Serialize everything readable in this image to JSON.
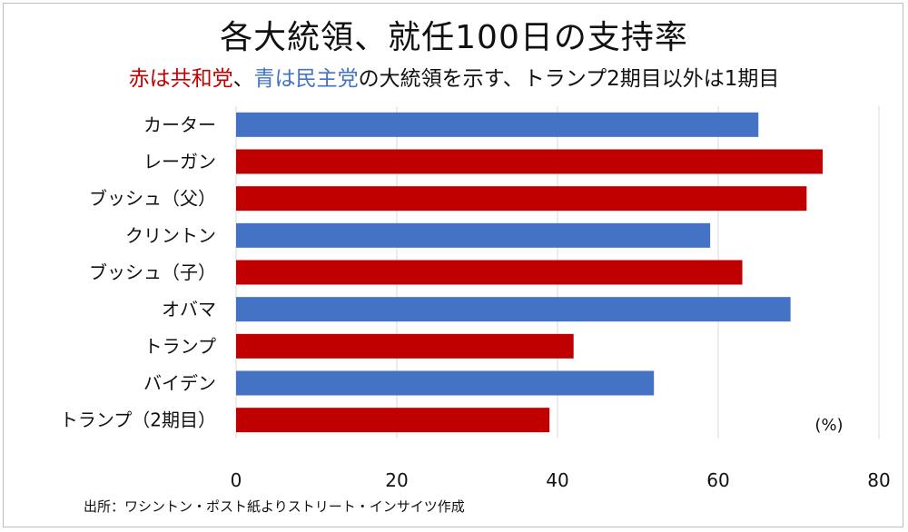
{
  "title": "各大統領、就任100日の支持率",
  "subtitle": {
    "red_part": "赤は共和党",
    "sep": "、",
    "blue_part": "青は民主党",
    "rest": "の大統領を示す、トランプ2期目以外は1期目"
  },
  "source": "出所：ワシントン・ポスト紙よりストリート・インサイツ作成",
  "colors": {
    "republican": "#c00000",
    "democrat": "#4472c4",
    "grid": "#d9d9d9"
  },
  "chart_data": {
    "type": "bar",
    "orientation": "horizontal",
    "categories": [
      "カーター",
      "レーガン",
      "ブッシュ（父）",
      "クリントン",
      "ブッシュ（子）",
      "オバマ",
      "トランプ",
      "バイデン",
      "トランプ（2期目）"
    ],
    "values": [
      65,
      73,
      71,
      59,
      63,
      69,
      42,
      52,
      39
    ],
    "party": [
      "democrat",
      "republican",
      "republican",
      "democrat",
      "republican",
      "democrat",
      "republican",
      "democrat",
      "republican"
    ],
    "xlim": [
      0,
      80
    ],
    "xticks": [
      0,
      20,
      40,
      60,
      80
    ],
    "unit": "(%)",
    "grid": true
  }
}
